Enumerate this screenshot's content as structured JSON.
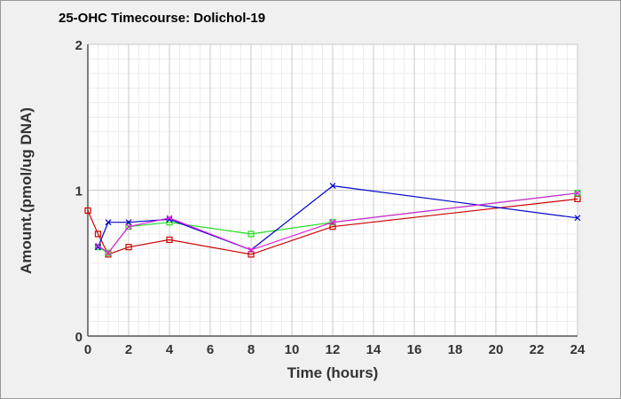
{
  "chart_data": {
    "type": "line",
    "title": "25-OHC Timecourse: Dolichol-19",
    "xlabel": "Time (hours)",
    "ylabel": "Amount.(pmol/ug DNA)",
    "xlim": [
      0,
      24
    ],
    "ylim": [
      0,
      2
    ],
    "x_ticks": [
      0,
      2,
      4,
      6,
      8,
      10,
      12,
      14,
      16,
      18,
      20,
      22,
      24
    ],
    "y_ticks": [
      0,
      1,
      2
    ],
    "grid": true,
    "legend": "none",
    "series": [
      {
        "color": "#cc0000",
        "marker": "square",
        "x": [
          0,
          0.5,
          1,
          2,
          4,
          8,
          12,
          24
        ],
        "y": [
          0.86,
          0.7,
          0.56,
          0.61,
          0.66,
          0.56,
          0.75,
          0.94
        ]
      },
      {
        "color": "#22dd22",
        "marker": "square",
        "x": [
          0.5,
          1,
          2,
          4,
          8,
          12,
          24
        ],
        "y": [
          0.61,
          0.57,
          0.75,
          0.78,
          0.7,
          0.78,
          0.98
        ]
      },
      {
        "color": "#0000cc",
        "marker": "x",
        "x": [
          0.5,
          1,
          2,
          4,
          8,
          12,
          24
        ],
        "y": [
          0.61,
          0.78,
          0.78,
          0.8,
          0.59,
          1.03,
          0.81
        ]
      },
      {
        "color": "#dd22dd",
        "marker": "x",
        "x": [
          0.5,
          1,
          2,
          4,
          8,
          12,
          24
        ],
        "y": [
          0.62,
          0.57,
          0.75,
          0.81,
          0.59,
          0.78,
          0.98
        ]
      }
    ]
  }
}
